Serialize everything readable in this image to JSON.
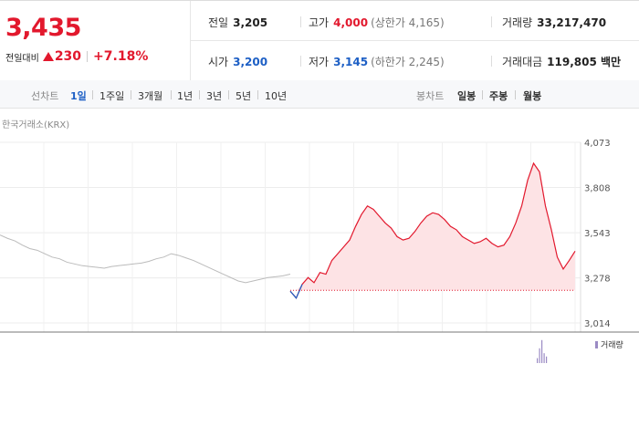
{
  "quote": {
    "price": "3,435",
    "change_label": "전일대비",
    "change": "230",
    "change_pct": "+7.18%"
  },
  "info": [
    {
      "k": "전일",
      "v": "3,205",
      "color": "normal"
    },
    {
      "k": "고가",
      "v": "4,000",
      "sub": "(상한가 4,165)",
      "color": "red"
    },
    {
      "k": "거래량",
      "v": "33,217,470",
      "color": "normal"
    },
    {
      "k": "시가",
      "v": "3,200",
      "color": "blue"
    },
    {
      "k": "저가",
      "v": "3,145",
      "sub": "(하한가 2,245)",
      "color": "blue"
    },
    {
      "k": "거래대금",
      "v": "119,805 백만",
      "color": "normal"
    }
  ],
  "tabs": {
    "line_label": "선차트",
    "line_items": [
      "1일",
      "1주일",
      "3개월",
      "1년",
      "3년",
      "5년",
      "10년"
    ],
    "candle_label": "봉차트",
    "candle_items": [
      "일봉",
      "주봉",
      "월봉"
    ],
    "active": "1일"
  },
  "chart": {
    "source": "한국거래소(KRX)",
    "volume_label": "거래량",
    "colors": {
      "up": "#e2182d",
      "down": "#1d5fc5",
      "prev": "#bbbbbb",
      "fill": "#fde3e5"
    }
  },
  "chart_data": {
    "type": "line",
    "baseline": 3205,
    "ylim": [
      3014,
      4073
    ],
    "yticks": [
      "4,073",
      "3,808",
      "3,543",
      "3,278",
      "3,014"
    ],
    "ytick_values": [
      4073,
      3808,
      3543,
      3278,
      3014
    ],
    "series": [
      {
        "values": [
          3530,
          3510,
          3495,
          3470,
          3450,
          3440,
          3420,
          3400,
          3390,
          3370,
          3360,
          3350,
          3345,
          3340,
          3335,
          3345,
          3350,
          3355,
          3360,
          3365,
          3375,
          3390,
          3400,
          3420,
          3410,
          3395,
          3380,
          3360,
          3340,
          3320,
          3300,
          3280,
          3260,
          3250,
          3260,
          3270,
          3280,
          3285,
          3290,
          3300
        ]
      },
      {
        "values": [
          3200,
          3160,
          3240,
          3280,
          3250,
          3310,
          3300,
          3380,
          3420,
          3460,
          3500,
          3580,
          3650,
          3700,
          3680,
          3640,
          3600,
          3570,
          3520,
          3500,
          3510,
          3550,
          3600,
          3640,
          3660,
          3650,
          3620,
          3580,
          3560,
          3520,
          3500,
          3480,
          3490,
          3510,
          3480,
          3460,
          3470,
          3520,
          3600,
          3700,
          3850,
          3950,
          3900,
          3700,
          3560,
          3400,
          3330,
          3380,
          3435
        ]
      }
    ],
    "volume": [
      3,
      9,
      14,
      6,
      4
    ]
  }
}
